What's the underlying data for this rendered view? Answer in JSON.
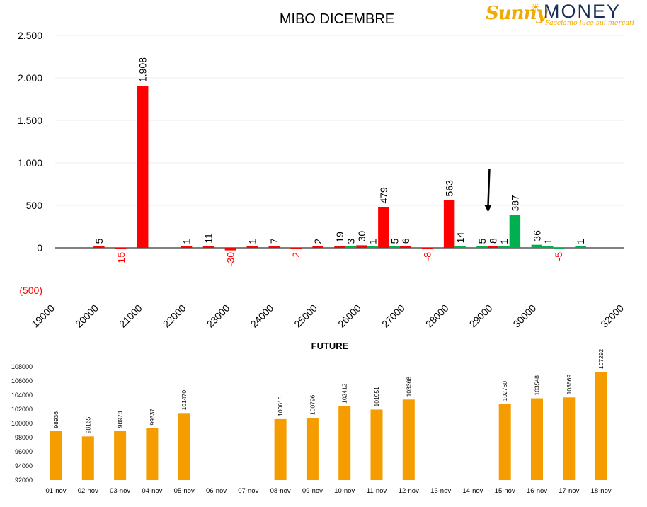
{
  "brand": {
    "name_part1": "Sunny",
    "name_part2": "MONEY",
    "tagline": "Facciamo luce sui mercati",
    "color_orange": "#f2a900",
    "color_navy": "#1a2f58"
  },
  "chart_data": [
    {
      "type": "bar",
      "title": "MIBO DICEMBRE",
      "ylim": [
        -500,
        2500
      ],
      "y_ticks": [
        -500,
        0,
        500,
        1000,
        1500,
        2000,
        2500
      ],
      "y_tick_labels": [
        "(500)",
        "0",
        "500",
        "1.000",
        "1.500",
        "2.000",
        "2.500"
      ],
      "xlim": [
        19000,
        32000
      ],
      "x_ticks": [
        19000,
        20000,
        21000,
        22000,
        23000,
        24000,
        25000,
        26000,
        27000,
        28000,
        29000,
        30000,
        32000
      ],
      "x_tick_labels": [
        "19000",
        "20000",
        "21000",
        "22000",
        "23000",
        "24000",
        "25000",
        "26000",
        "27000",
        "28000",
        "29000",
        "30000",
        "32000"
      ],
      "bar_width": 250,
      "series": [
        {
          "color": "#ff0000",
          "points": [
            {
              "x": 20000,
              "y": 5,
              "label": "5"
            },
            {
              "x": 20500,
              "y": -15,
              "label": "-15"
            },
            {
              "x": 21000,
              "y": 1908,
              "label": "1.908"
            },
            {
              "x": 22000,
              "y": 1,
              "label": "1"
            },
            {
              "x": 22500,
              "y": 11,
              "label": "11"
            },
            {
              "x": 23000,
              "y": -30,
              "label": "-30"
            },
            {
              "x": 23500,
              "y": 1,
              "label": "1"
            },
            {
              "x": 24000,
              "y": 7,
              "label": "7"
            },
            {
              "x": 24500,
              "y": -2,
              "label": "-2"
            },
            {
              "x": 25000,
              "y": 2,
              "label": "2"
            },
            {
              "x": 25500,
              "y": 19,
              "label": "19"
            },
            {
              "x": 26000,
              "y": 30,
              "label": "30"
            },
            {
              "x": 26500,
              "y": 479,
              "label": "479"
            },
            {
              "x": 27000,
              "y": 6,
              "label": "6"
            },
            {
              "x": 27500,
              "y": -8,
              "label": "-8"
            },
            {
              "x": 28000,
              "y": 563,
              "label": "563"
            },
            {
              "x": 29000,
              "y": 8,
              "label": "8"
            }
          ]
        },
        {
          "color": "#00b050",
          "points": [
            {
              "x": 25750,
              "y": 3,
              "label": "3"
            },
            {
              "x": 26250,
              "y": 1,
              "label": "1"
            },
            {
              "x": 26750,
              "y": 5,
              "label": "5"
            },
            {
              "x": 28250,
              "y": 14,
              "label": "14"
            },
            {
              "x": 28750,
              "y": 5,
              "label": "5"
            },
            {
              "x": 29250,
              "y": 1,
              "label": "1"
            },
            {
              "x": 29500,
              "y": 387,
              "label": "387"
            },
            {
              "x": 30000,
              "y": 36,
              "label": "36"
            },
            {
              "x": 30250,
              "y": 1,
              "label": "1"
            },
            {
              "x": 30500,
              "y": -5,
              "label": "-5"
            },
            {
              "x": 31000,
              "y": 1,
              "label": "1"
            }
          ]
        }
      ],
      "annotation_arrow": {
        "x": 29000,
        "y_from": 930,
        "y_to": 420,
        "color": "#000000"
      }
    },
    {
      "type": "bar",
      "title": "FUTURE",
      "color": "#f59c00",
      "ylim": [
        92000,
        108000
      ],
      "y_ticks": [
        92000,
        94000,
        96000,
        98000,
        100000,
        102000,
        104000,
        106000,
        108000
      ],
      "y_tick_labels": [
        "92000",
        "94000",
        "96000",
        "98000",
        "100000",
        "102000",
        "104000",
        "106000",
        "108000"
      ],
      "categories": [
        "01-nov",
        "02-nov",
        "03-nov",
        "04-nov",
        "05-nov",
        "06-nov",
        "07-nov",
        "08-nov",
        "09-nov",
        "10-nov",
        "11-nov",
        "12-nov",
        "13-nov",
        "14-nov",
        "15-nov",
        "16-nov",
        "17-nov",
        "18-nov"
      ],
      "values": [
        98936,
        98165,
        98978,
        99337,
        101470,
        null,
        null,
        100610,
        100796,
        102412,
        101951,
        103368,
        null,
        null,
        102760,
        103548,
        103669,
        107292
      ]
    }
  ]
}
